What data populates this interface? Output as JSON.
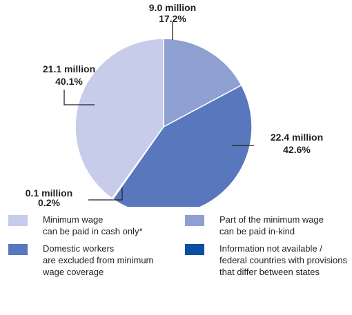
{
  "chart_data": {
    "type": "pie",
    "title": "",
    "slices": [
      {
        "name": "Part of the minimum wage can be paid in-kind",
        "value_label": "9.0 million",
        "percent_label": "17.2%",
        "percent": 17.2,
        "color": "#8e9fd2"
      },
      {
        "name": "Domestic workers are excluded from minimum wage coverage",
        "value_label": "22.4 million",
        "percent_label": "42.6%",
        "percent": 42.6,
        "color": "#5877bd"
      },
      {
        "name": "Information not available / federal countries with provisions that differ between states",
        "value_label": "0.1 million",
        "percent_label": "0.2%",
        "percent": 0.2,
        "color": "#0b4fa0"
      },
      {
        "name": "Minimum wage can be paid in cash only*",
        "value_label": "21.1 million",
        "percent_label": "40.1%",
        "percent": 40.1,
        "color": "#c6cce9"
      }
    ]
  },
  "legend": {
    "items": [
      {
        "text": "Minimum wage\ncan be paid in cash only*",
        "color": "#c6cce9"
      },
      {
        "text": "Part of the minimum wage\ncan be paid in-kind",
        "color": "#8e9fd2"
      },
      {
        "text": "Domestic workers\nare excluded from minimum\nwage coverage",
        "color": "#5877bd"
      },
      {
        "text": "Information not available /\nfederal countries with provisions\nthat differ between states",
        "color": "#0b4fa0"
      }
    ]
  }
}
